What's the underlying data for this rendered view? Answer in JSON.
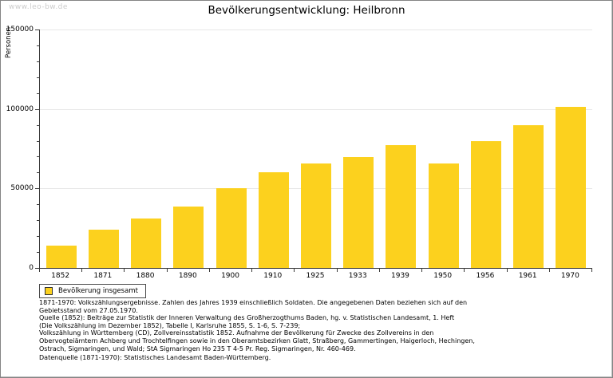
{
  "watermark": "www.leo-bw.de",
  "chart_data": {
    "type": "bar",
    "title": "Bevölkerungsentwicklung: Heilbronn",
    "ylabel": "Personen",
    "xlabel": "",
    "categories": [
      "1852",
      "1871",
      "1880",
      "1890",
      "1900",
      "1910",
      "1925",
      "1933",
      "1939",
      "1950",
      "1956",
      "1961",
      "1970"
    ],
    "values": [
      14000,
      24000,
      31000,
      38500,
      50000,
      60000,
      65500,
      69500,
      77500,
      65500,
      80000,
      90000,
      101500
    ],
    "ylim": [
      0,
      150000
    ],
    "ytick_major": 50000,
    "ytick_minor": 10000,
    "grid": "horizontal-major",
    "legend_label": "Bevölkerung insgesamt",
    "legend_position": "bottom-left",
    "bar_color": "#FCD11E",
    "axis_color": "#3A3A3A",
    "grid_color": "#E6E6E6"
  },
  "footer": {
    "notes": "1871-1970: Volkszählungsergebnisse. Zahlen des Jahres 1939 einschließlich Soldaten. Die angegebenen Daten beziehen sich auf den\nGebietsstand vom 27.05.1970.\nQuelle (1852): Beiträge zur Statistik der Inneren Verwaltung des Großherzogthums Baden, hg. v. Statistischen Landesamt, 1. Heft\n(Die Volkszählung im Dezember 1852), Tabelle I, Karlsruhe 1855, S. 1-6, S. 7-239;\nVolkszählung in Württemberg (CD), Zollvereinsstatistik 1852. Aufnahme der Bevölkerung für Zwecke des Zollvereins in den\nObervogteiämtern Achberg und Trochtelfingen sowie in den Oberamtsbezirken Glatt, Straßberg, Gammertingen, Haigerloch, Hechingen,\nOstrach, Sigmaringen, und Wald; StA Sigmaringen Ho 235 T 4-5 Pr. Reg. Sigmaringen, Nr. 460-469.",
    "source": "Datenquelle (1871-1970): Statistisches Landesamt Baden-Württemberg."
  }
}
